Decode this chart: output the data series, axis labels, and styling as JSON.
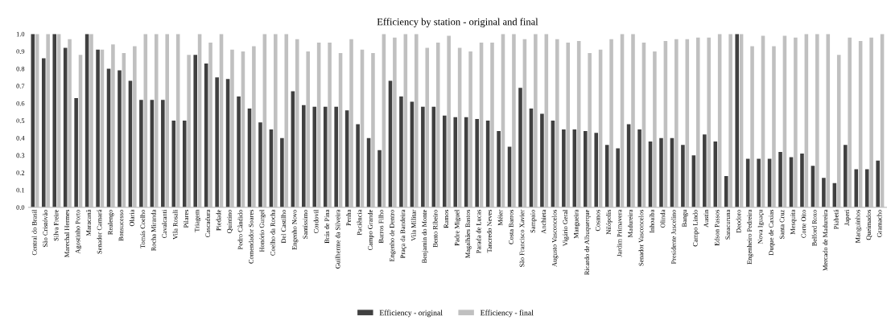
{
  "chart_data": {
    "type": "bar",
    "title": "Efficiency by station - original and final",
    "categories": [
      "Central do Brasil",
      "São Cristóvão",
      "Silva Freire",
      "Marechal Hermes",
      "Agostinho Porto",
      "Maracanã",
      "Senador Camará",
      "Realengo",
      "Bonsucesso",
      "Olaria",
      "Tomás Coelho",
      "Rocha Miranda",
      "Cavalcanti",
      "Vila Rosali",
      "Pilares",
      "Triagem",
      "Cascadura",
      "Piedade",
      "Quintino",
      "Pedro Cândido",
      "Comendador Soares",
      "Honório Gurgel",
      "Coelho da Rocha",
      "Del Castilho",
      "Engenho Novo",
      "Santíssimo",
      "Cordovil",
      "Brás de Pina",
      "Guilherme da Silveira",
      "Penha",
      "Paciência",
      "Campo Grande",
      "Barros Filho",
      "Engenho de Dentro",
      "Praça da Bandeira",
      "Vila Militar",
      "Benjamin do Monte",
      "Bento Ribeiro",
      "Ramos",
      "Padre Miguel",
      "Magalhães Bastos",
      "Parada de Lucas",
      "Tancredo Neves",
      "Méier",
      "Costa Barros",
      "São Francisco Xavier",
      "Sampaio",
      "Anchieta",
      "Augusto Vasconcelos",
      "Vigário Geral",
      "Mangueira",
      "Ricardo de Albuquerque",
      "Cosmos",
      "Nilópolis",
      "Jardim Primavera",
      "Madureira",
      "Senador Vasconcelos",
      "Inhoaíba",
      "Olinda",
      "Presidente Juscelino",
      "Bangu",
      "Campo Lindo",
      "Austin",
      "Edson Passos",
      "Saracuruna",
      "Deodoro",
      "Engenheiro Pedreira",
      "Nova Iguaçu",
      "Duque de Caxias",
      "Santa Cruz",
      "Mesquita",
      "Corte Oito",
      "Belford Roxo",
      "Mercado de Madureira",
      "Piabetá",
      "Japeri",
      "Manguinhos",
      "Queimados",
      "Gramacho"
    ],
    "series": [
      {
        "name": "Efficiency - original",
        "color": "#404040",
        "values": [
          1.0,
          0.86,
          1.0,
          0.92,
          0.63,
          1.0,
          0.91,
          0.8,
          0.79,
          0.73,
          0.62,
          0.62,
          0.62,
          0.5,
          0.5,
          0.88,
          0.83,
          0.75,
          0.74,
          0.64,
          0.57,
          0.49,
          0.45,
          0.4,
          0.67,
          0.59,
          0.58,
          0.58,
          0.58,
          0.56,
          0.48,
          0.4,
          0.33,
          0.73,
          0.64,
          0.61,
          0.58,
          0.58,
          0.53,
          0.52,
          0.52,
          0.51,
          0.5,
          0.44,
          0.35,
          0.69,
          0.57,
          0.54,
          0.5,
          0.45,
          0.45,
          0.44,
          0.43,
          0.36,
          0.34,
          0.48,
          0.45,
          0.38,
          0.4,
          0.4,
          0.36,
          0.3,
          0.42,
          0.38,
          0.18,
          1.0,
          0.28,
          0.28,
          0.28,
          0.32,
          0.29,
          0.31,
          0.24,
          0.17,
          0.14,
          0.36,
          0.22,
          0.22,
          0.27
        ]
      },
      {
        "name": "Efficiency - final",
        "color": "#c0c0c0",
        "values": [
          1.0,
          1.0,
          1.0,
          0.97,
          0.88,
          1.0,
          0.91,
          0.94,
          0.89,
          0.93,
          1.0,
          1.0,
          1.0,
          1.0,
          0.88,
          1.0,
          0.95,
          1.0,
          0.91,
          0.9,
          0.93,
          1.0,
          1.0,
          1.0,
          0.97,
          0.9,
          0.95,
          0.95,
          0.89,
          0.97,
          0.91,
          0.89,
          1.0,
          0.98,
          1.0,
          1.0,
          0.92,
          0.95,
          0.99,
          0.92,
          0.9,
          0.95,
          0.95,
          1.0,
          1.0,
          0.97,
          1.0,
          1.0,
          0.97,
          0.95,
          0.96,
          0.89,
          0.91,
          0.97,
          1.0,
          1.0,
          0.95,
          0.9,
          0.96,
          0.97,
          0.97,
          0.98,
          0.98,
          1.0,
          1.0,
          1.0,
          0.93,
          0.99,
          0.93,
          0.99,
          0.98,
          1.0,
          1.0,
          1.0,
          0.88,
          0.98,
          0.96,
          0.98,
          1.0
        ]
      }
    ],
    "ylim": [
      0,
      1
    ],
    "yticks": [
      {
        "value": 0,
        "label": "0.0"
      },
      0.1,
      0.2,
      0.3,
      0.4,
      0.5,
      0.6,
      0.7,
      0.8,
      0.9,
      {
        "value": 1,
        "label": "1.0"
      }
    ],
    "grid": false,
    "legend": "bottom"
  }
}
